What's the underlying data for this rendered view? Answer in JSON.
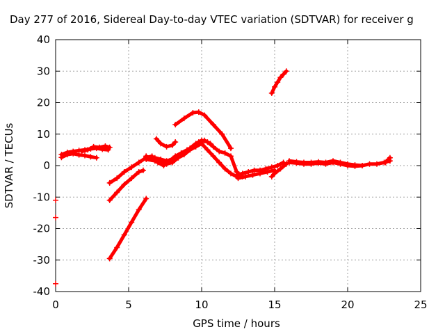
{
  "chart_data": {
    "type": "scatter",
    "title": "Day 277 of 2016, Sidereal Day-to-day VTEC variation (SDTVAR) for receiver g",
    "xlabel": "GPS time / hours",
    "ylabel": "SDTVAR / TECUs",
    "xlim": [
      0,
      25
    ],
    "ylim": [
      -40,
      40
    ],
    "x_ticks": [
      0,
      5,
      10,
      15,
      20,
      25
    ],
    "y_ticks": [
      -40,
      -30,
      -20,
      -10,
      0,
      10,
      20,
      30,
      40
    ],
    "grid": true,
    "marker": "+",
    "color": "#ff0000",
    "series": [
      {
        "x": [
          0.4,
          0.8,
          1.2,
          1.6,
          2.0,
          2.4,
          2.8,
          3.2,
          3.6
        ],
        "y": [
          3.5,
          4.2,
          4.5,
          4.8,
          5.0,
          5.3,
          5.5,
          5.2,
          5.0
        ]
      },
      {
        "x": [
          0.4,
          0.8,
          1.2,
          1.6,
          2.0,
          2.4,
          2.8
        ],
        "y": [
          2.6,
          3.5,
          3.8,
          3.4,
          3.2,
          2.8,
          2.5
        ]
      },
      {
        "x": [
          1.8,
          2.2,
          2.6,
          3.0,
          3.4,
          3.7
        ],
        "y": [
          4.5,
          5.0,
          6.0,
          5.8,
          6.2,
          5.8
        ]
      },
      {
        "x": [
          3.7,
          4.2,
          4.7,
          5.2,
          5.7,
          6.2,
          6.6
        ],
        "y": [
          -5.5,
          -4.0,
          -2.0,
          -0.5,
          1.0,
          2.5,
          3.0
        ]
      },
      {
        "x": [
          3.7,
          4.2,
          4.7,
          5.2,
          5.7,
          6.0
        ],
        "y": [
          -11.0,
          -8.5,
          -6.0,
          -4.0,
          -2.0,
          -1.5
        ]
      },
      {
        "x": [
          3.7,
          4.2,
          4.7,
          5.2,
          5.7,
          6.2
        ],
        "y": [
          -29.5,
          -26.0,
          -22.0,
          -18.0,
          -14.0,
          -10.5
        ]
      },
      {
        "x": [
          6.2,
          6.8,
          7.2,
          7.6,
          8.0,
          8.4,
          8.8,
          9.2,
          9.6,
          10.0,
          10.4,
          10.8,
          11.2,
          11.6,
          12.0,
          12.4,
          12.8
        ],
        "y": [
          2.8,
          2.5,
          2.0,
          1.5,
          2.0,
          3.0,
          4.0,
          5.5,
          7.0,
          8.0,
          7.5,
          6.0,
          4.5,
          4.0,
          3.0,
          -2.0,
          -3.5
        ]
      },
      {
        "x": [
          6.2,
          6.8,
          7.2,
          7.6,
          8.0,
          8.4,
          8.8,
          9.2,
          9.6,
          10.0,
          10.4,
          10.8,
          11.2,
          11.6,
          12.0,
          12.4
        ],
        "y": [
          2.0,
          1.5,
          1.0,
          0.5,
          1.0,
          2.5,
          3.5,
          5.0,
          6.0,
          7.0,
          5.0,
          3.0,
          1.0,
          -1.0,
          -2.5,
          -3.5
        ]
      },
      {
        "x": [
          6.2,
          6.6,
          7.0,
          7.4,
          7.8,
          8.2,
          8.6,
          9.0,
          9.4,
          9.8,
          10.2,
          10.6
        ],
        "y": [
          3.0,
          2.0,
          1.0,
          0.0,
          1.5,
          3.0,
          4.0,
          5.0,
          6.0,
          7.5,
          8.0,
          7.0
        ]
      },
      {
        "x": [
          6.9,
          7.2,
          7.6,
          8.0,
          8.2
        ],
        "y": [
          8.5,
          7.0,
          6.0,
          6.5,
          7.5
        ]
      },
      {
        "x": [
          8.2,
          8.8,
          9.4,
          9.8,
          10.2,
          10.8,
          11.4,
          12.0
        ],
        "y": [
          13.0,
          15.0,
          16.8,
          17.0,
          16.0,
          13.0,
          10.0,
          5.5
        ]
      },
      {
        "x": [
          12.4,
          12.8,
          13.2,
          13.6,
          14.0,
          14.4,
          14.8,
          15.2,
          15.6
        ],
        "y": [
          -3.0,
          -2.5,
          -2.0,
          -1.5,
          -1.5,
          -1.0,
          -0.5,
          0.0,
          1.0
        ]
      },
      {
        "x": [
          12.5,
          13.0,
          13.5,
          14.0,
          14.5,
          15.0
        ],
        "y": [
          -4.0,
          -3.5,
          -3.0,
          -2.5,
          -2.0,
          -1.5
        ]
      },
      {
        "x": [
          14.8,
          15.0,
          15.4,
          15.8
        ],
        "y": [
          -3.5,
          -2.5,
          -1.0,
          0.5
        ]
      },
      {
        "x": [
          14.8,
          15.0,
          15.2,
          15.4,
          15.6,
          15.8
        ],
        "y": [
          23.0,
          25.0,
          26.5,
          28.0,
          29.0,
          30.0
        ]
      },
      {
        "x": [
          16.0,
          16.5,
          17.0,
          17.5,
          18.0,
          18.5,
          19.0,
          19.5,
          20.0,
          20.5,
          21.0,
          21.5,
          22.0,
          22.5,
          22.9
        ],
        "y": [
          1.5,
          1.2,
          1.0,
          1.0,
          1.2,
          1.0,
          1.5,
          1.0,
          0.5,
          0.2,
          0.0,
          0.5,
          0.5,
          1.0,
          1.5
        ]
      },
      {
        "x": [
          16.0,
          16.5,
          17.0,
          17.5,
          18.0,
          18.5,
          19.0,
          19.5,
          20.0,
          20.5,
          21.0
        ],
        "y": [
          1.0,
          0.8,
          0.5,
          0.5,
          0.8,
          0.5,
          1.0,
          0.5,
          0.0,
          -0.2,
          0.0
        ]
      },
      {
        "x": [
          22.6,
          22.8,
          22.9
        ],
        "y": [
          1.0,
          2.0,
          2.5
        ]
      },
      {
        "x": [
          0.0,
          0.0,
          0.0
        ],
        "y": [
          -11.0,
          -16.5,
          -37.5
        ]
      }
    ]
  }
}
